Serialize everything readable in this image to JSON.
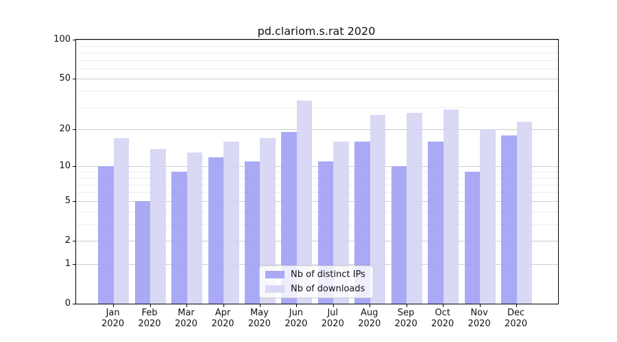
{
  "chart_data": {
    "type": "bar",
    "title": "pd.clariom.s.rat 2020",
    "months": [
      "Jan",
      "Feb",
      "Mar",
      "Apr",
      "May",
      "Jun",
      "Jul",
      "Aug",
      "Sep",
      "Oct",
      "Nov",
      "Dec"
    ],
    "year": "2020",
    "series": [
      {
        "name": "Nb of distinct IPs",
        "color": "#a0a0f4",
        "values": [
          10,
          5,
          9,
          12,
          11,
          19,
          11,
          16,
          10,
          16,
          9,
          18
        ]
      },
      {
        "name": "Nb of downloads",
        "color": "#d5d5f4",
        "values": [
          17,
          14,
          13,
          16,
          17,
          34,
          16,
          26,
          27,
          29,
          20,
          23
        ]
      }
    ],
    "y_ticks": [
      0,
      1,
      2,
      5,
      10,
      20,
      50,
      100
    ],
    "y_minor_gridlines": [
      3,
      4,
      6,
      7,
      8,
      9,
      30,
      40,
      60,
      70,
      80,
      90
    ],
    "y_scale": "log1p",
    "ylim": [
      0,
      100
    ],
    "grid": "both",
    "legend_position": "lower center"
  },
  "colors": {
    "grid_major": "#cccccc",
    "grid_minor": "#ededed",
    "spine": "#000000",
    "background": "#ffffff"
  }
}
